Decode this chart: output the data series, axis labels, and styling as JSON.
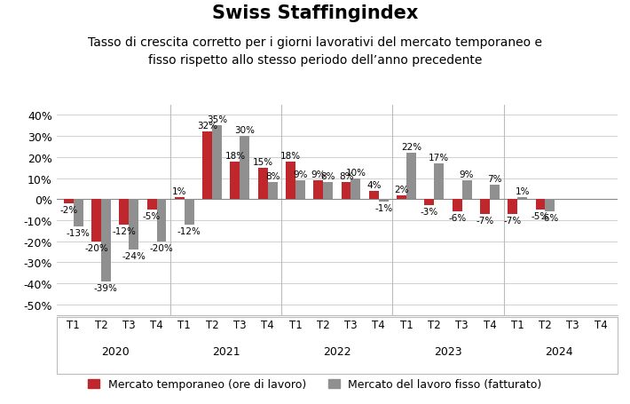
{
  "title": "Swiss Staffingindex",
  "subtitle": "Tasso di crescita corretto per i giorni lavorativi del mercato temporaneo e\nfisso rispetto allo stesso periodo dell’anno precedente",
  "years": [
    "2020",
    "2021",
    "2022",
    "2023",
    "2024"
  ],
  "quarters": [
    "T1",
    "T2",
    "T3",
    "T4"
  ],
  "red_values": [
    -2,
    -20,
    -12,
    -5,
    1,
    32,
    18,
    15,
    18,
    9,
    8,
    4,
    2,
    -3,
    -6,
    -7,
    -7,
    -5,
    null,
    null
  ],
  "gray_values": [
    -13,
    -39,
    -24,
    -20,
    -12,
    35,
    30,
    8,
    9,
    8,
    10,
    -1,
    22,
    17,
    9,
    7,
    1,
    -6,
    null,
    null
  ],
  "red_color": "#c0272d",
  "gray_color": "#909090",
  "background_color": "#ffffff",
  "ylim": [
    -55,
    45
  ],
  "yticks": [
    -50,
    -40,
    -30,
    -20,
    -10,
    0,
    10,
    20,
    30,
    40
  ],
  "ytick_labels": [
    "-50%",
    "-40%",
    "-30%",
    "-20%",
    "-10%",
    "0%",
    "10%",
    "20%",
    "30%",
    "40%"
  ],
  "legend_red": "Mercato temporaneo (ore di lavoro)",
  "legend_gray": "Mercato del lavoro fisso (fatturato)",
  "bar_width": 0.35,
  "label_fontsize": 7.5,
  "title_fontsize": 15,
  "subtitle_fontsize": 10
}
